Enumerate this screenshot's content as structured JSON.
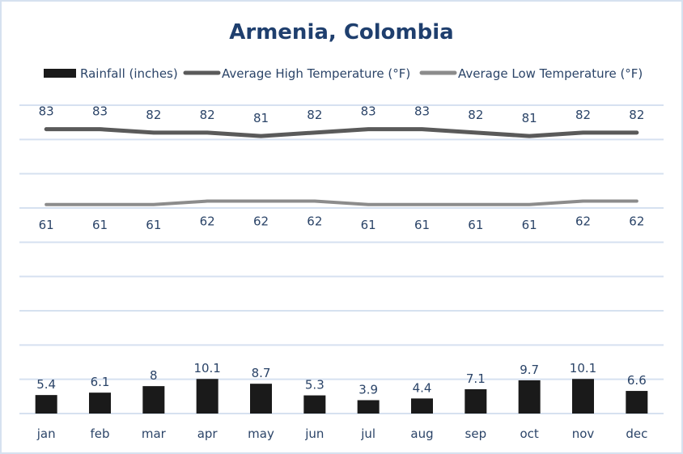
{
  "chart_data": {
    "type": "bar",
    "title": "Armenia, Colombia",
    "xlabel": "",
    "ylabel": "",
    "ylim": [
      0,
      90
    ],
    "grid": true,
    "gridline_step": 10,
    "legend_position": "top",
    "categories": [
      "jan",
      "feb",
      "mar",
      "apr",
      "may",
      "jun",
      "jul",
      "aug",
      "sep",
      "oct",
      "nov",
      "dec"
    ],
    "series": [
      {
        "name": "Rainfall (inches)",
        "kind": "bar",
        "color": "#1a1a1a",
        "values": [
          5.4,
          6.1,
          8,
          10.1,
          8.7,
          5.3,
          3.9,
          4.4,
          7.1,
          9.7,
          10.1,
          6.6
        ]
      },
      {
        "name": "Average High Temperature (°F)",
        "kind": "line",
        "color": "#5a5a5a",
        "values": [
          83,
          83,
          82,
          82,
          81,
          82,
          83,
          83,
          82,
          81,
          82,
          82
        ]
      },
      {
        "name": "Average Low Temperature (°F)",
        "kind": "line",
        "color": "#8c8c8c",
        "values": [
          61,
          61,
          61,
          62,
          62,
          62,
          61,
          61,
          61,
          61,
          62,
          62
        ]
      }
    ],
    "colors": {
      "grid": "#d6e1f0",
      "text": "#2b4468",
      "title": "#1f3f6e"
    }
  }
}
